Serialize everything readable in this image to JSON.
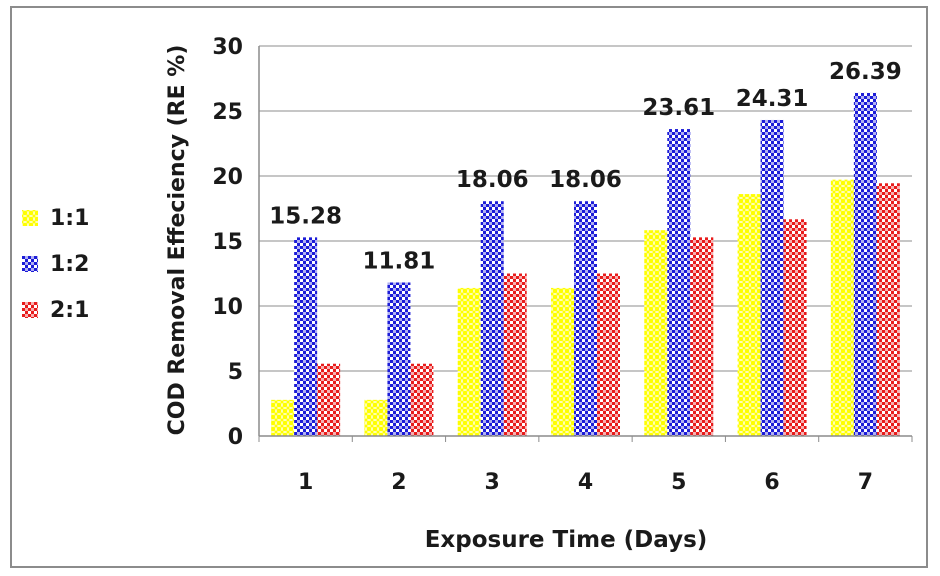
{
  "chart_data": {
    "type": "bar",
    "categories": [
      "1",
      "2",
      "3",
      "4",
      "5",
      "6",
      "7"
    ],
    "series": [
      {
        "name": "1:1",
        "color": "#ffff00",
        "pattern": "dots",
        "values": [
          2.78,
          2.78,
          11.39,
          11.39,
          15.83,
          18.61,
          19.72
        ]
      },
      {
        "name": "1:2",
        "color": "#1c1cd8",
        "pattern": "checker",
        "values": [
          15.28,
          11.81,
          18.06,
          18.06,
          23.61,
          24.31,
          26.39
        ]
      },
      {
        "name": "2:1",
        "color": "#e81c1c",
        "pattern": "checker",
        "values": [
          5.56,
          5.56,
          12.5,
          12.5,
          15.28,
          16.67,
          19.44
        ]
      }
    ],
    "data_labels": [
      "15.28",
      "11.81",
      "18.06",
      "18.06",
      "23.61",
      "24.31",
      "26.39"
    ],
    "title": "",
    "xlabel": "Exposure Time (Days)",
    "ylabel": "COD Removal Effeciency (RE %)",
    "ylim": [
      0,
      30
    ],
    "yticks": [
      "0",
      "5",
      "10",
      "15",
      "20",
      "25",
      "30"
    ],
    "grid": true,
    "legend_position": "left"
  }
}
